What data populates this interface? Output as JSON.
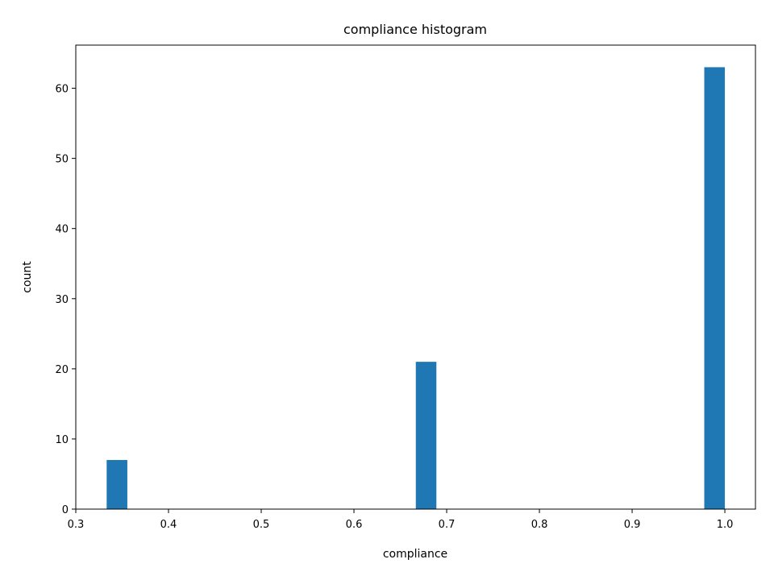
{
  "chart_data": {
    "type": "bar",
    "title": "compliance histogram",
    "xlabel": "compliance",
    "ylabel": "count",
    "bins": [
      {
        "start": 0.3333,
        "end": 0.3556,
        "count": 7
      },
      {
        "start": 0.6667,
        "end": 0.6889,
        "count": 21
      },
      {
        "start": 0.9778,
        "end": 1.0,
        "count": 63
      }
    ],
    "xlim": [
      0.3,
      1.033
    ],
    "ylim": [
      0,
      66.15
    ],
    "xticks": [
      "0.3",
      "0.4",
      "0.5",
      "0.6",
      "0.7",
      "0.8",
      "0.9",
      "1.0"
    ],
    "yticks": [
      "0",
      "10",
      "20",
      "30",
      "40",
      "50",
      "60"
    ],
    "bar_color": "#1f77b4",
    "grid": false
  }
}
